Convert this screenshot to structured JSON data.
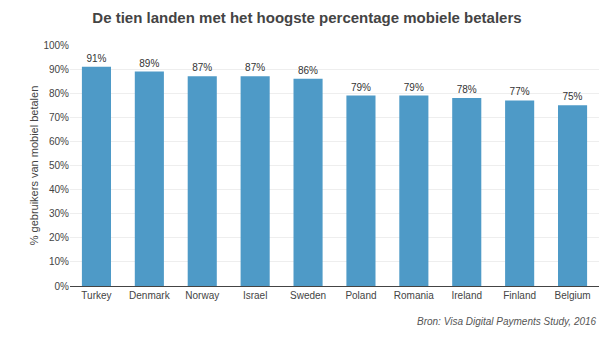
{
  "chart_data": {
    "type": "bar",
    "title": "De tien landen met het hoogste percentage mobiele betalers",
    "ylabel": "% gebruikers van mobiel betalen",
    "annotations": [
      "Bron: Visa Digital Payments Study, 2016"
    ],
    "categories": [
      "Turkey",
      "Denmark",
      "Norway",
      "Israel",
      "Sweden",
      "Poland",
      "Romania",
      "Ireland",
      "Finland",
      "Belgium"
    ],
    "values": [
      0.91,
      0.89,
      0.87,
      0.87,
      0.86,
      0.79,
      0.79,
      0.78,
      0.77,
      0.75
    ],
    "value_labels": [
      "91%",
      "89%",
      "87%",
      "87%",
      "86%",
      "79%",
      "79%",
      "78%",
      "77%",
      "75%"
    ],
    "data_labels": true,
    "color": "#4E9AC7",
    "ylim": [
      0,
      1.0
    ],
    "yticks": [
      {
        "value": 0.0,
        "label": "0%"
      },
      {
        "value": 0.1,
        "label": "10%"
      },
      {
        "value": 0.2,
        "label": "20%"
      },
      {
        "value": 0.3,
        "label": "30%"
      },
      {
        "value": 0.4,
        "label": "40%"
      },
      {
        "value": 0.5,
        "label": "50%"
      },
      {
        "value": 0.6,
        "label": "60%"
      },
      {
        "value": 0.7,
        "label": "70%"
      },
      {
        "value": 0.8,
        "label": "80%"
      },
      {
        "value": 0.9,
        "label": "90%"
      },
      {
        "value": 1.0,
        "label": "100%"
      }
    ],
    "grid": true
  }
}
